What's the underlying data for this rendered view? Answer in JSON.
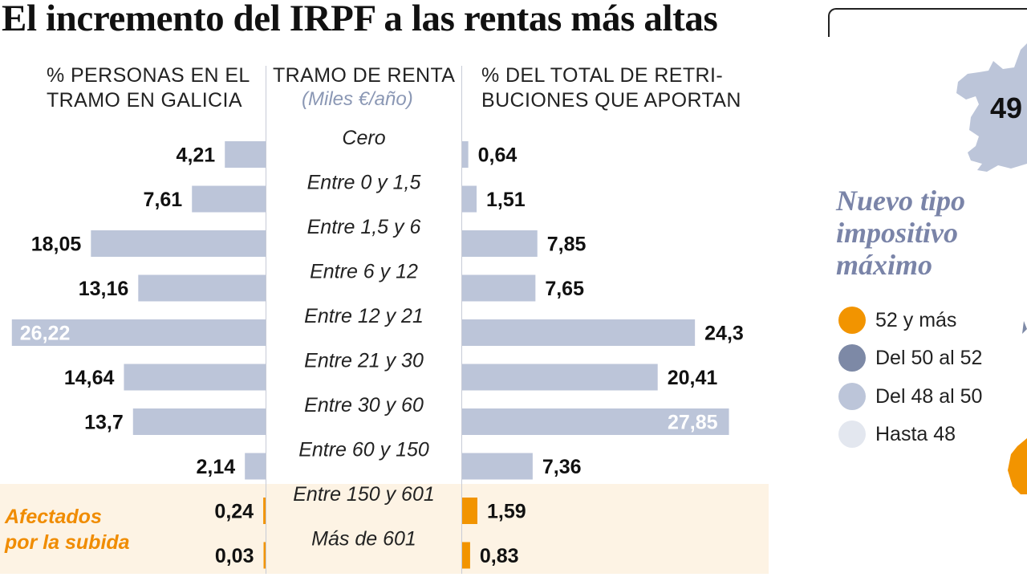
{
  "title": "El incremento del IRPF a las rentas más altas",
  "columns": {
    "left_header": [
      "% PERSONAS EN EL",
      "TRAMO EN GALICIA"
    ],
    "middle_header": "TRAMO DE RENTA",
    "middle_sub": "(Miles €/año)",
    "right_header": [
      "% DEL TOTAL DE RETRI-",
      "BUCIONES QUE APORTAN"
    ]
  },
  "highlight": {
    "label_lines": [
      "Afectados",
      "por la subida"
    ]
  },
  "chart_data": {
    "type": "bar",
    "orientation": "horizontal-butterfly",
    "categories": [
      "Cero",
      "Entre 0 y 1,5",
      "Entre 1,5 y 6",
      "Entre 6 y 12",
      "Entre 12 y 21",
      "Entre 21 y 30",
      "Entre 30 y 60",
      "Entre 60 y 150",
      "Entre 150 y 601",
      "Más de 601"
    ],
    "series": [
      {
        "name": "% PERSONAS EN EL TRAMO EN GALICIA",
        "values": [
          4.21,
          7.61,
          18.05,
          13.16,
          26.22,
          14.64,
          13.7,
          2.14,
          0.24,
          0.03
        ],
        "labels": [
          "4,21",
          "7,61",
          "18,05",
          "13,16",
          "26,22",
          "14,64",
          "13,7",
          "2,14",
          "0,24",
          "0,03"
        ]
      },
      {
        "name": "% DEL TOTAL DE RETRIBUCIONES QUE APORTAN",
        "values": [
          0.64,
          1.51,
          7.85,
          7.65,
          24.3,
          20.41,
          27.85,
          7.36,
          1.59,
          0.83
        ],
        "labels": [
          "0,64",
          "1,51",
          "7,85",
          "7,65",
          "24,3",
          "20,41",
          "27,85",
          "7,36",
          "1,59",
          "0,83"
        ]
      }
    ],
    "highlighted_categories": [
      "Entre 150 y 601",
      "Más de 601"
    ],
    "colors": {
      "bar": "#bcc5d9",
      "highlight_bar": "#f29400",
      "label_dark": "#111111",
      "label_inside": "#ffffff"
    }
  },
  "legend": {
    "title_lines": [
      "Nuevo tipo",
      "impositivo",
      "máximo"
    ],
    "items": [
      {
        "label": "52 y más",
        "color": "#f29400"
      },
      {
        "label": "Del 50 al 52",
        "color": "#7d89a6"
      },
      {
        "label": "Del 48 al 50",
        "color": "#bcc5d9"
      },
      {
        "label": "Hasta 48",
        "color": "#e3e7ef"
      }
    ]
  },
  "map": {
    "visible_value": "49"
  }
}
